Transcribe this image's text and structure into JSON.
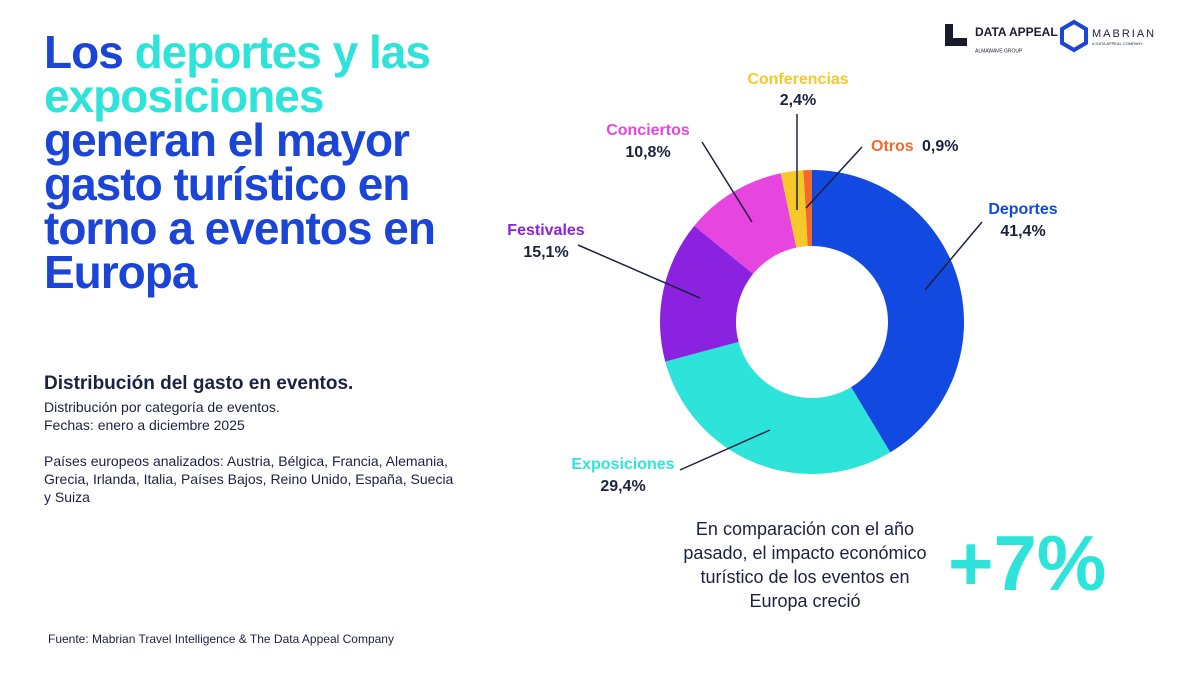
{
  "chart_data": {
    "type": "donut",
    "title": [
      "Los ",
      "deportes y las exposiciones",
      " generan el mayor gasto turístico en torno a eventos en Europa"
    ],
    "subtitle": "Distribución del gasto en eventos.",
    "notes": [
      "Distribución por categoría de eventos.",
      "Fechas: enero a diciembre 2025",
      "Países europeos analizados: Austria, Bélgica, Francia, Alemania, Grecia, Irlanda, Italia, Países Bajos, Reino Unido, España, Suecia y Suiza"
    ],
    "categories": [
      "Deportes",
      "Exposiciones",
      "Festivales",
      "Conciertos",
      "Conferencias",
      "Otros"
    ],
    "values": [
      41.4,
      29.4,
      15.1,
      10.8,
      2.4,
      0.9
    ],
    "value_labels": [
      "41,4%",
      "29,4%",
      "15,1%",
      "10,8%",
      "2,4%",
      "0,9%"
    ],
    "colors": [
      "#1249e0",
      "#2ee3da",
      "#8a22e0",
      "#e645e0",
      "#f7c82a",
      "#f26b2a"
    ],
    "annotation": "En comparación con el año pasado, el impacto económico turístico de los eventos en Europa creció",
    "highlight": "+7%",
    "source": "Fuente: Mabrian Travel Intelligence & The Data Appeal Company",
    "logos": [
      "DATA APPEAL",
      "ALMAWAVE GROUP",
      "MABRIAN",
      "A DATA APPEAL COMPANY"
    ]
  }
}
